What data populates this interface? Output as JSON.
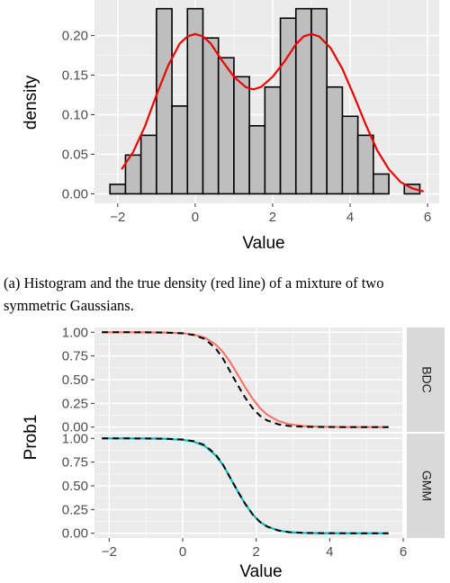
{
  "caption": "(a) Histogram and the true density (red line) of a mixture of two symmetric Gaussians.",
  "chart_data": [
    {
      "type": "bar",
      "xlabel": "Value",
      "ylabel": "density",
      "xlim": [
        -2.6,
        6.3
      ],
      "ylim": [
        -0.012,
        0.245
      ],
      "xticks": [
        -2,
        0,
        2,
        4,
        6
      ],
      "yticks": [
        0.0,
        0.05,
        0.1,
        0.15,
        0.2
      ],
      "ytick_labels": [
        "0.00",
        "0.05",
        "0.10",
        "0.15",
        "0.20"
      ],
      "bin_width": 0.4,
      "bin_centers": [
        -2.0,
        -1.6,
        -1.2,
        -0.8,
        -0.4,
        0.0,
        0.4,
        0.8,
        1.2,
        1.6,
        2.0,
        2.4,
        2.8,
        3.2,
        3.6,
        4.0,
        4.4,
        4.8,
        5.2,
        5.6
      ],
      "values": [
        0.012,
        0.049,
        0.074,
        0.234,
        0.111,
        0.234,
        0.197,
        0.172,
        0.148,
        0.086,
        0.135,
        0.222,
        0.234,
        0.234,
        0.135,
        0.098,
        0.074,
        0.025,
        0.0,
        0.012
      ],
      "density_curve": {
        "color": "#ee0000",
        "x": [
          -1.9,
          -1.6,
          -1.3,
          -1.0,
          -0.7,
          -0.4,
          -0.2,
          0.0,
          0.2,
          0.4,
          0.7,
          1.0,
          1.3,
          1.5,
          1.7,
          2.0,
          2.3,
          2.6,
          2.8,
          3.0,
          3.2,
          3.5,
          3.8,
          4.1,
          4.4,
          4.7,
          5.0,
          5.3,
          5.6,
          5.9
        ],
        "y": [
          0.031,
          0.053,
          0.085,
          0.125,
          0.162,
          0.19,
          0.199,
          0.202,
          0.199,
          0.19,
          0.168,
          0.148,
          0.135,
          0.132,
          0.135,
          0.148,
          0.167,
          0.189,
          0.199,
          0.202,
          0.199,
          0.184,
          0.158,
          0.124,
          0.088,
          0.055,
          0.031,
          0.015,
          0.007,
          0.003
        ]
      },
      "bar_fill": "#bebebe",
      "panel_background": "#ebebeb"
    },
    {
      "type": "line",
      "xlabel": "Value",
      "ylabel": "Prob1",
      "xlim": [
        -2.4,
        6.0
      ],
      "ylim": [
        -0.05,
        1.05
      ],
      "xticks": [
        -2,
        0,
        2,
        4,
        6
      ],
      "yticks": [
        0.0,
        0.25,
        0.5,
        0.75,
        1.0
      ],
      "ytick_labels": [
        "0.00",
        "0.25",
        "0.50",
        "0.75",
        "1.00"
      ],
      "x": [
        -2.2,
        -1.5,
        -1.0,
        -0.5,
        0.0,
        0.3,
        0.6,
        0.9,
        1.1,
        1.3,
        1.5,
        1.7,
        1.9,
        2.1,
        2.3,
        2.6,
        2.9,
        3.3,
        3.8,
        4.4,
        5.0,
        5.6
      ],
      "series": [
        {
          "name": "BDC",
          "color": "#f8766d",
          "values": [
            1.0,
            1.0,
            0.999,
            0.997,
            0.99,
            0.975,
            0.943,
            0.87,
            0.79,
            0.68,
            0.55,
            0.42,
            0.3,
            0.2,
            0.13,
            0.065,
            0.03,
            0.011,
            0.004,
            0.001,
            0.0,
            0.0
          ]
        },
        {
          "name": "GMM",
          "color": "#00bfc4",
          "values": [
            1.0,
            1.0,
            0.999,
            0.996,
            0.985,
            0.966,
            0.92,
            0.82,
            0.72,
            0.58,
            0.44,
            0.31,
            0.2,
            0.12,
            0.07,
            0.03,
            0.012,
            0.004,
            0.001,
            0.0,
            0.0,
            0.0
          ]
        }
      ],
      "reference_series": {
        "style": "dashed",
        "color": "#000000",
        "values": [
          1.0,
          1.0,
          0.999,
          0.997,
          0.988,
          0.97,
          0.93,
          0.83,
          0.72,
          0.58,
          0.44,
          0.31,
          0.2,
          0.12,
          0.07,
          0.03,
          0.012,
          0.004,
          0.001,
          0.0,
          0.0,
          0.0
        ]
      },
      "facet_labels": [
        "BDC",
        "GMM"
      ],
      "strip_fill": "#d9d9d9",
      "panel_background": "#ebebeb"
    }
  ]
}
